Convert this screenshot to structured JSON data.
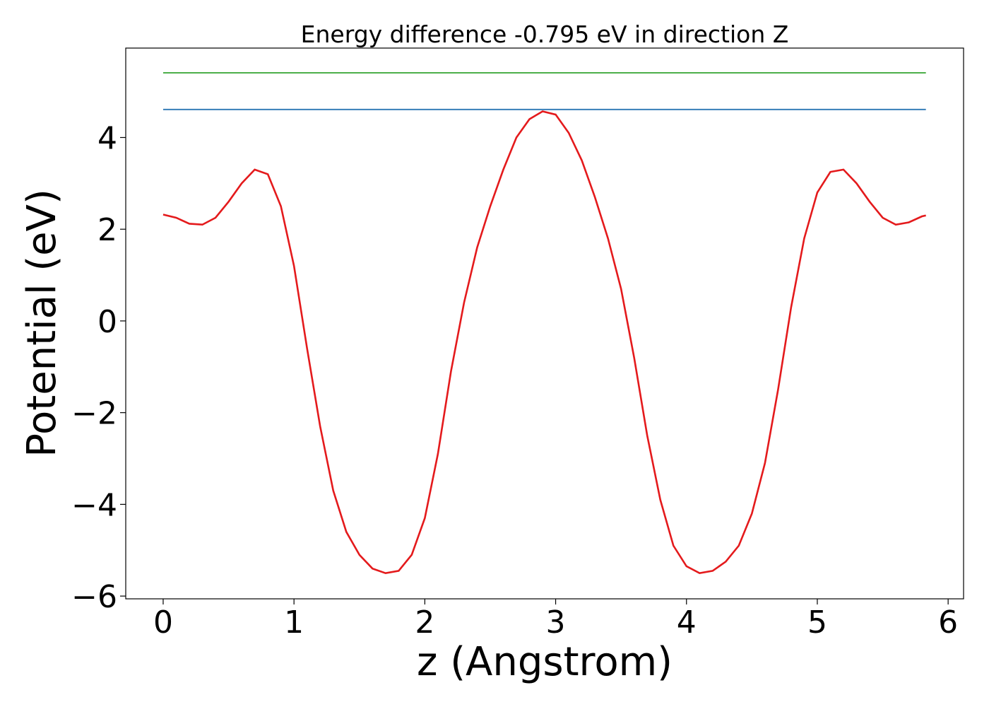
{
  "chart_data": {
    "type": "line",
    "title": "Energy difference -0.795 eV in direction Z",
    "xlabel": "z (Angstrom)",
    "ylabel": "Potential (eV)",
    "xlim": [
      -0.286,
      6.118
    ],
    "ylim": [
      -6.06,
      5.95
    ],
    "xticks": [
      0,
      1,
      2,
      3,
      4,
      5,
      6
    ],
    "yticks": [
      {
        "value": -6,
        "label": "−6"
      },
      {
        "value": -4,
        "label": "−4"
      },
      {
        "value": -2,
        "label": "−2"
      },
      0,
      2,
      4
    ],
    "series": [
      {
        "color": "#e41a1c",
        "x": [
          0,
          0.1,
          0.2,
          0.3,
          0.4,
          0.5,
          0.6,
          0.7,
          0.8,
          0.9,
          1.0,
          1.1,
          1.2,
          1.3,
          1.4,
          1.5,
          1.6,
          1.7,
          1.8,
          1.9,
          2.0,
          2.1,
          2.2,
          2.3,
          2.4,
          2.5,
          2.6,
          2.7,
          2.8,
          2.9,
          3.0,
          3.1,
          3.2,
          3.3,
          3.4,
          3.5,
          3.6,
          3.7,
          3.8,
          3.9,
          4.0,
          4.1,
          4.2,
          4.3,
          4.4,
          4.5,
          4.6,
          4.7,
          4.8,
          4.9,
          5.0,
          5.1,
          5.2,
          5.3,
          5.4,
          5.5,
          5.6,
          5.7,
          5.8,
          5.83
        ],
        "values": [
          2.32,
          2.25,
          2.12,
          2.1,
          2.25,
          2.6,
          3.0,
          3.3,
          3.2,
          2.5,
          1.2,
          -0.6,
          -2.3,
          -3.7,
          -4.6,
          -5.1,
          -5.4,
          -5.5,
          -5.45,
          -5.1,
          -4.3,
          -2.9,
          -1.1,
          0.4,
          1.6,
          2.5,
          3.3,
          4.0,
          4.4,
          4.57,
          4.5,
          4.1,
          3.5,
          2.7,
          1.8,
          0.7,
          -0.8,
          -2.5,
          -3.9,
          -4.9,
          -5.35,
          -5.5,
          -5.45,
          -5.25,
          -4.9,
          -4.2,
          -3.1,
          -1.5,
          0.3,
          1.8,
          2.8,
          3.25,
          3.3,
          3.0,
          2.6,
          2.25,
          2.1,
          2.15,
          2.28,
          2.3
        ]
      },
      {
        "color": "#4daf4a",
        "x": [
          0,
          5.83
        ],
        "values": [
          5.41,
          5.41
        ]
      },
      {
        "color": "#377eb8",
        "x": [
          0,
          5.83
        ],
        "values": [
          4.61,
          4.61
        ]
      }
    ]
  }
}
